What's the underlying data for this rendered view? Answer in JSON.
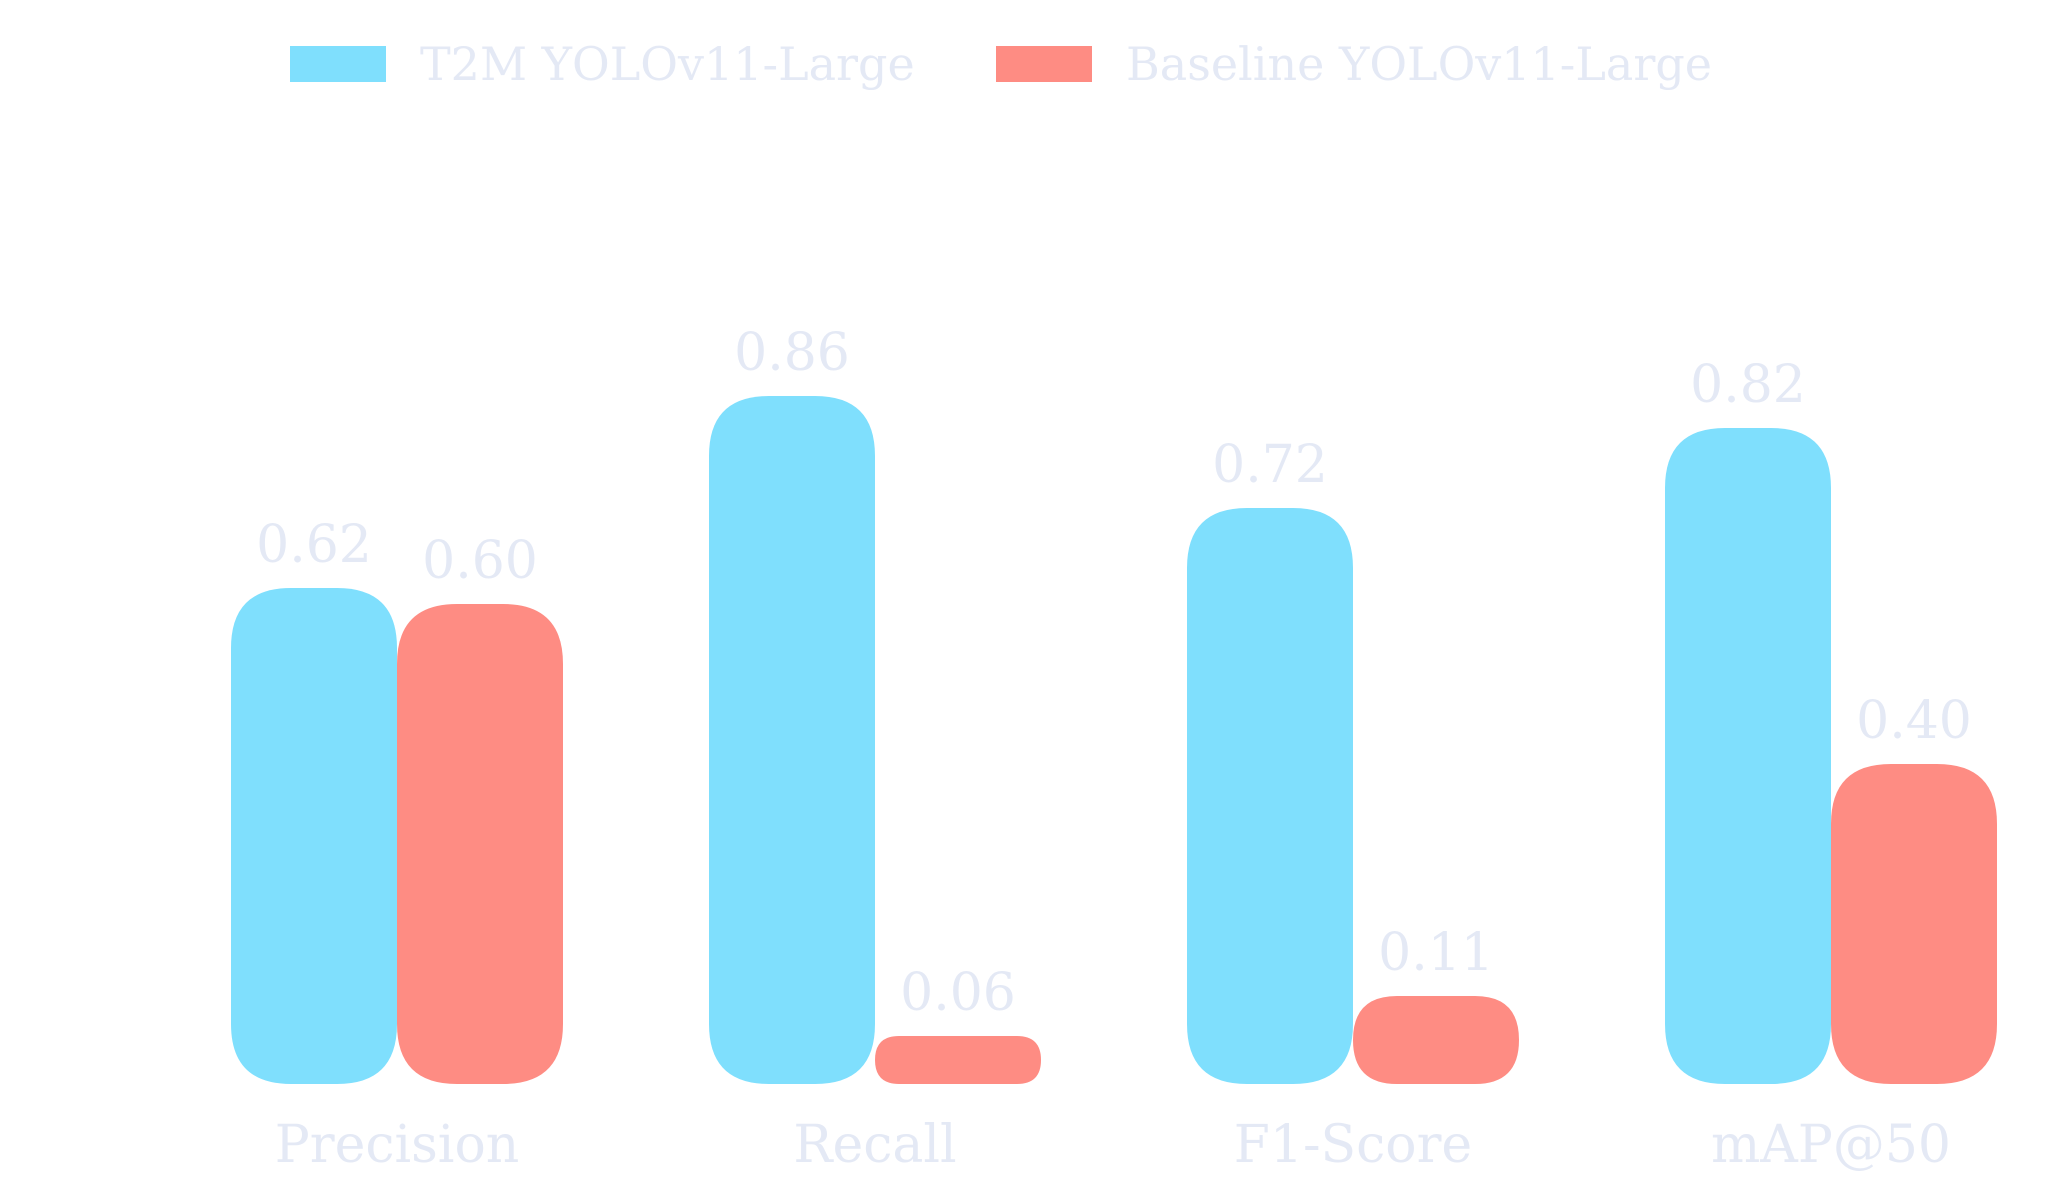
{
  "chart_data": {
    "type": "bar",
    "title": "",
    "xlabel": "",
    "ylabel": "",
    "ylim": [
      0,
      1
    ],
    "grid": false,
    "legend_position": "top-center",
    "categories": [
      "Precision",
      "Recall",
      "F1-Score",
      "mAP@50"
    ],
    "series": [
      {
        "name": "T2M YOLOv11-Large",
        "color": "#7fdffd",
        "values": [
          0.62,
          0.86,
          0.72,
          0.82
        ],
        "labels": [
          "0.62",
          "0.86",
          "0.72",
          "0.82"
        ]
      },
      {
        "name": "Baseline YOLOv11-Large",
        "color": "#fe8c83",
        "values": [
          0.6,
          0.06,
          0.11,
          0.4
        ],
        "labels": [
          "0.60",
          "0.06",
          "0.11",
          "0.40"
        ]
      }
    ]
  }
}
